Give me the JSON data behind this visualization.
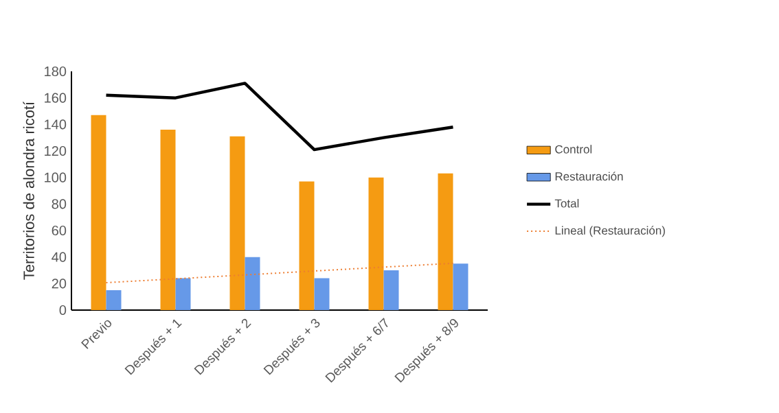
{
  "chart_data": {
    "type": "bar",
    "ylabel": "Territorios de alondra ricotí",
    "categories": [
      "Previo",
      "Después + 1",
      "Después + 2",
      "Después + 3",
      "Después + 6/7",
      "Después + 8/9"
    ],
    "series": [
      {
        "name": "Control",
        "color": "#f59b12",
        "values": [
          147,
          136,
          131,
          97,
          100,
          103
        ]
      },
      {
        "name": "Restauración",
        "color": "#6699e8",
        "values": [
          15,
          24,
          40,
          24,
          30,
          35
        ]
      },
      {
        "name": "Total",
        "type": "line",
        "color": "#000000",
        "line_style": "solid",
        "values": [
          162,
          160,
          171,
          121,
          130,
          138
        ]
      },
      {
        "name": "Lineal (Restauración)",
        "type": "line",
        "color": "#ed7d31",
        "line_style": "dotted",
        "values": [
          20.7,
          23.6,
          26.5,
          29.5,
          32.4,
          35.3
        ]
      }
    ],
    "ylim": [
      0,
      180
    ],
    "yticks": [
      0,
      20,
      40,
      60,
      80,
      100,
      120,
      140,
      160,
      180
    ],
    "legend": "right"
  }
}
